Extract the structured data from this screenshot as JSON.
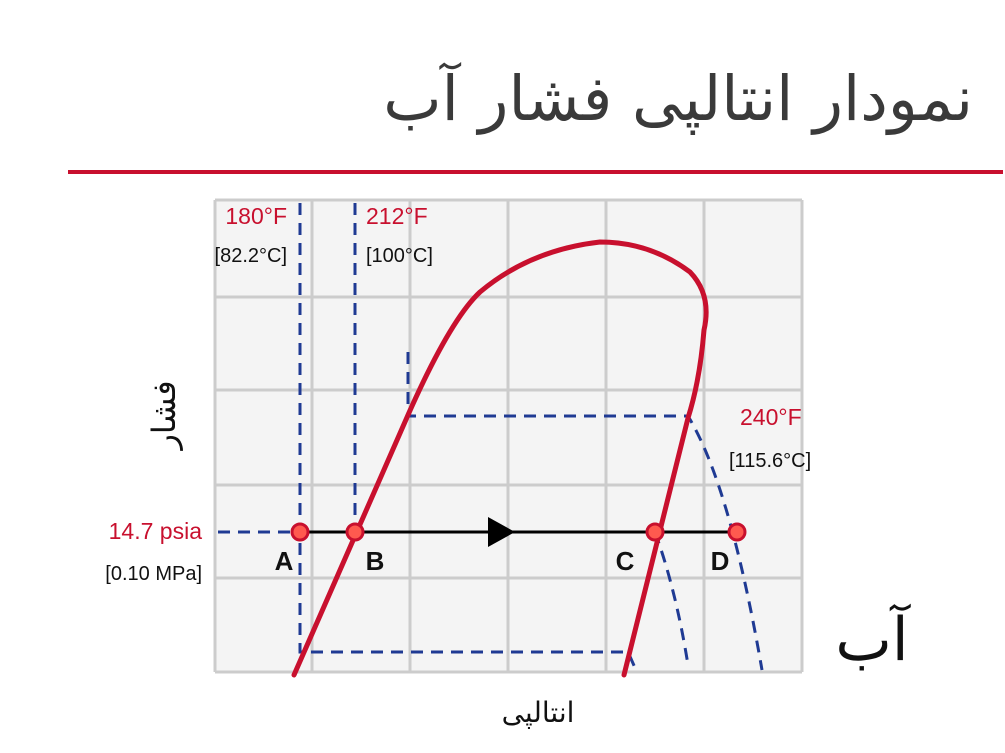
{
  "title": "نمودار انتالپی فشار آب",
  "y_axis_label": "فشار",
  "x_axis_label": "انتالپی",
  "substance_label": "آب",
  "isotherms": [
    {
      "temp_f": "180°F",
      "temp_c": "[82.2°C]"
    },
    {
      "temp_f": "212°F",
      "temp_c": "[100°C]"
    },
    {
      "temp_f": "240°F",
      "temp_c": "[115.6°C]"
    }
  ],
  "pressure": {
    "psia": "14.7 psia",
    "mpa": "[0.10 MPa]"
  },
  "points": [
    "A",
    "B",
    "C",
    "D"
  ],
  "colors": {
    "curve": "#c8102e",
    "dashed": "#1f3a93",
    "grid": "#cccccc",
    "line": "#000000"
  }
}
